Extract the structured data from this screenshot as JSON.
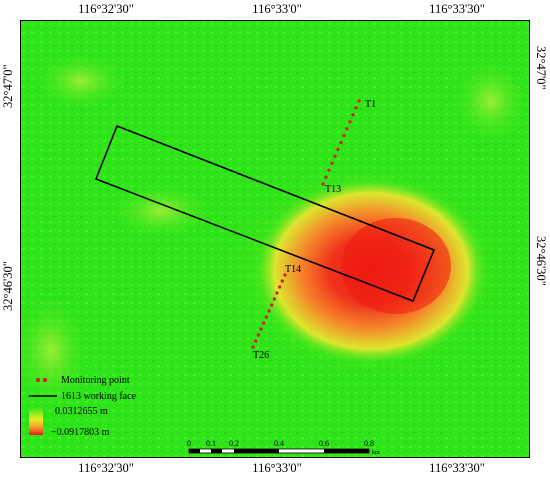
{
  "axes": {
    "top": [
      "116°32'30\"",
      "116°33'0\"",
      "116°33'30\""
    ],
    "bottom": [
      "116°32'30\"",
      "116°33'0\"",
      "116°33'30\""
    ],
    "left": [
      "32°47'0\"",
      "32°46'30\""
    ],
    "right": [
      "32°47'0\"",
      "32°46'30\""
    ]
  },
  "labels": {
    "t1": "T1",
    "t13": "T13",
    "t14": "T14",
    "t26": "T26"
  },
  "legend": {
    "monitoring_point": "Monitoring point",
    "working_face": "1613 working face",
    "max_value": "0.0312655 m",
    "min_value": "−0.0917803 m"
  },
  "scale_bar": {
    "ticks": [
      "0",
      "0.1",
      "0.2",
      "0.4",
      "0.6",
      "0.8"
    ],
    "unit": "km"
  },
  "colors": {
    "background_green": "#2ee51a",
    "subsidence_red": "#ee1a10",
    "monitoring_point": "#d81818",
    "working_face_outline": "#000000"
  }
}
